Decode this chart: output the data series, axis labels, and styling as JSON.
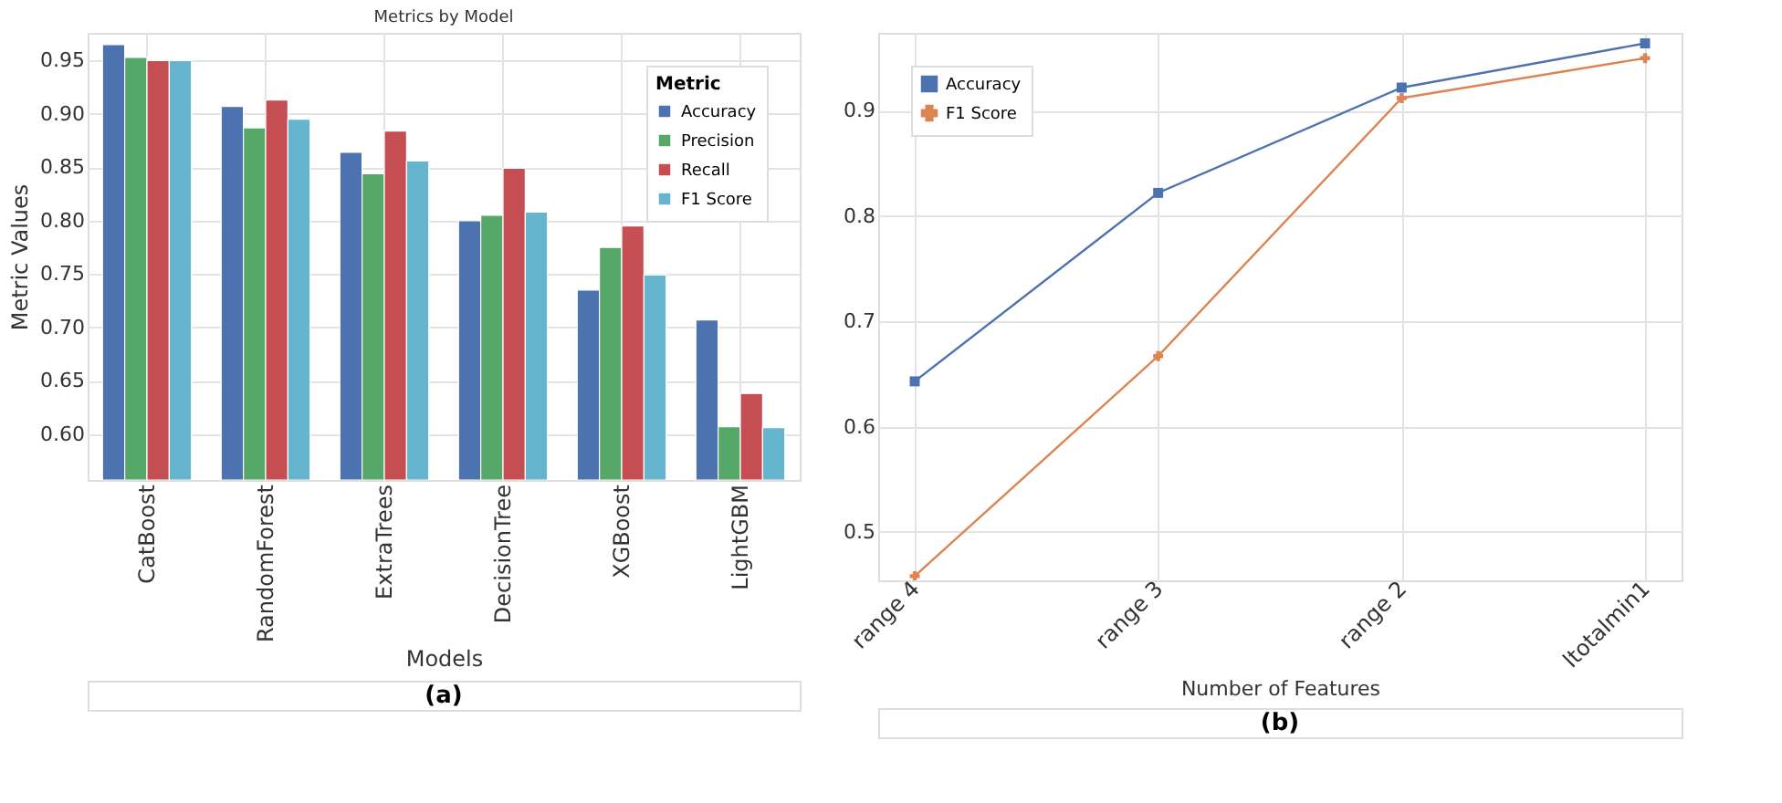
{
  "chart_data": [
    {
      "type": "bar",
      "title": "Metrics by Model",
      "xlabel": "Models",
      "ylabel": "Metric Values",
      "legend_title": "Metric",
      "categories": [
        "CatBoost",
        "RandomForest",
        "ExtraTrees",
        "DecisionTree",
        "XGBoost",
        "LightGBM"
      ],
      "series": [
        {
          "name": "Accuracy",
          "color": "#4c72b0",
          "values": [
            0.965,
            0.907,
            0.864,
            0.8,
            0.735,
            0.707
          ]
        },
        {
          "name": "Precision",
          "color": "#55a868",
          "values": [
            0.953,
            0.887,
            0.844,
            0.805,
            0.775,
            0.607
          ]
        },
        {
          "name": "Recall",
          "color": "#c44e52",
          "values": [
            0.95,
            0.913,
            0.884,
            0.849,
            0.795,
            0.638
          ]
        },
        {
          "name": "F1 Score",
          "color": "#64b5cd",
          "values": [
            0.95,
            0.895,
            0.856,
            0.808,
            0.749,
            0.606
          ]
        }
      ],
      "ylim": [
        0.557,
        0.976
      ],
      "yticks": [
        {
          "value": 0.6,
          "label": "0.60"
        },
        0.65,
        {
          "value": 0.7,
          "label": "0.70"
        },
        0.75,
        {
          "value": 0.8,
          "label": "0.80"
        },
        0.85,
        {
          "value": 0.9,
          "label": "0.90"
        },
        0.95
      ],
      "grid": true,
      "legend": "top right",
      "annotations": [
        "(a)"
      ]
    },
    {
      "type": "line",
      "xlabel": "Number of Features",
      "categories": [
        "range 4",
        "range 3",
        "range 2",
        "ltotalmin1"
      ],
      "series": [
        {
          "name": "Accuracy",
          "color": "#4c72b0",
          "marker": "square",
          "values": [
            0.643,
            0.822,
            0.922,
            0.964
          ]
        },
        {
          "name": "F1 Score",
          "color": "#dd8452",
          "marker": "cross",
          "values": [
            0.458,
            0.667,
            0.912,
            0.95
          ]
        }
      ],
      "ylim": [
        0.454,
        0.974
      ],
      "yticks": [
        0.5,
        0.6,
        0.7,
        0.8,
        0.9
      ],
      "grid": true,
      "legend": "top left",
      "annotations": [
        "(b)"
      ]
    }
  ]
}
